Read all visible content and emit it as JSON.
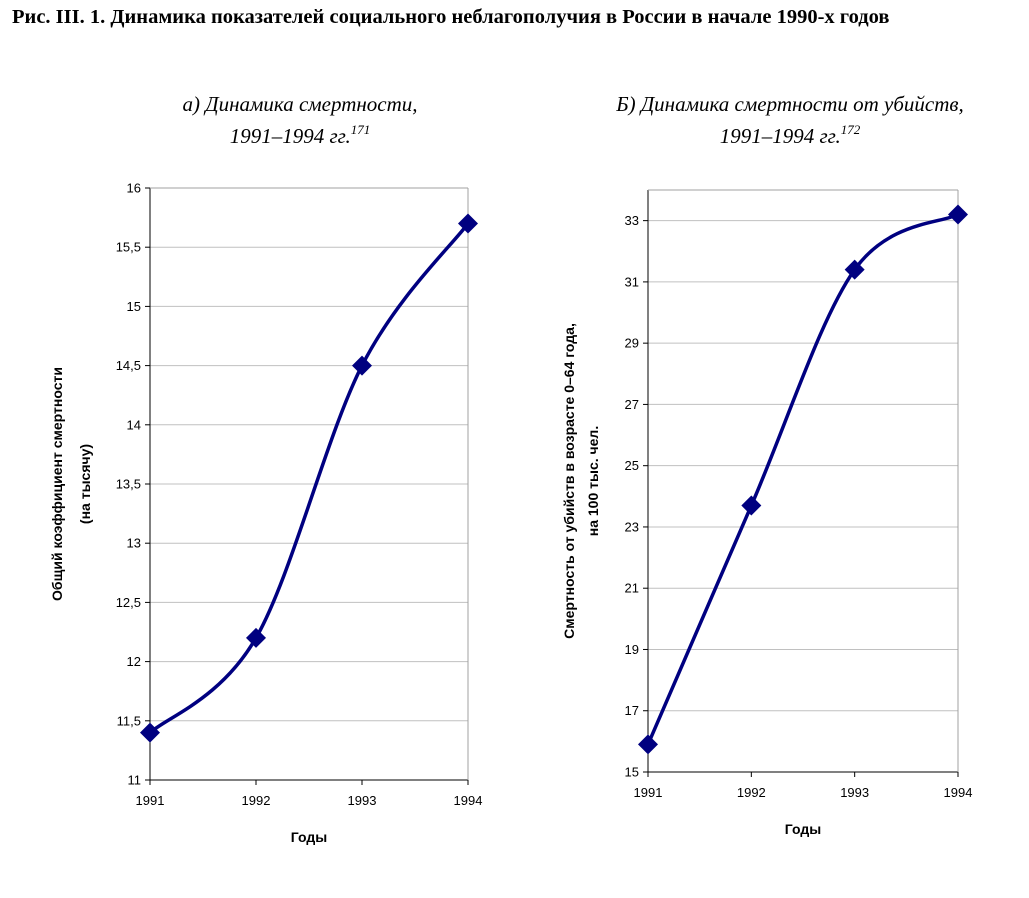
{
  "figure": {
    "title": "Рис. III. 1. Динамика показателей социального неблагополучия в России в начале 1990-х годов"
  },
  "chart_data": [
    {
      "type": "line",
      "title_line1": "а) Динамика смертности,",
      "title_line2": "1991–1994 гг.",
      "footnote": "171",
      "xlabel": "Годы",
      "ylabel_line1": "Общий коэффициент смертности",
      "ylabel_line2": "(на тысячу)",
      "x": [
        "1991",
        "1992",
        "1993",
        "1994"
      ],
      "values": [
        11.4,
        12.2,
        14.5,
        15.7
      ],
      "ylim": [
        11,
        16
      ],
      "yticks": [
        "11",
        "11,5",
        "12",
        "12,5",
        "13",
        "13,5",
        "14",
        "14,5",
        "15",
        "15,5",
        "16"
      ],
      "grid": true,
      "line_color": "#000080"
    },
    {
      "type": "line",
      "title_line1": "Б) Динамика смертности от убийств,",
      "title_line2": "1991–1994 гг.",
      "footnote": "172",
      "xlabel": "Годы",
      "ylabel_line1": "Смертность от убийств в возрасте 0–64 года,",
      "ylabel_line2": "на 100 тыс. чел.",
      "x": [
        "1991",
        "1992",
        "1993",
        "1994"
      ],
      "values": [
        15.9,
        23.7,
        31.4,
        33.2
      ],
      "ylim": [
        15,
        34
      ],
      "yticks": [
        "15",
        "17",
        "19",
        "21",
        "23",
        "25",
        "27",
        "29",
        "31",
        "33"
      ],
      "grid": true,
      "line_color": "#000080"
    }
  ]
}
